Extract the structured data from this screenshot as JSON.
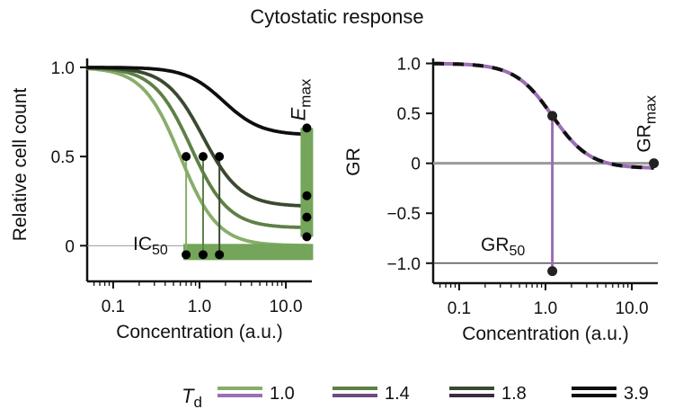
{
  "title": "Cytostatic response",
  "colors": {
    "green1": "#88ad6b",
    "green2": "#5e8046",
    "green3": "#3a4a30",
    "black": "#0e0e0e",
    "purple": "#9b6fb5",
    "band": "#74a55a",
    "zero_line": "#9a9a9a"
  },
  "chart_data": [
    {
      "type": "line",
      "xscale": "log",
      "xlabel": "Concentration (a.u.)",
      "ylabel": "Relative cell count",
      "xlim": [
        0.05,
        20
      ],
      "ylim": [
        -0.2,
        1.05
      ],
      "xticks": [
        {
          "v": 0.1,
          "label": "0.1"
        },
        {
          "v": 1,
          "label": "1.0"
        },
        {
          "v": 10,
          "label": "10.0"
        }
      ],
      "yticks": [
        {
          "v": 0,
          "label": "0"
        },
        {
          "v": 0.5,
          "label": "0.5"
        },
        {
          "v": 1,
          "label": "1.0"
        }
      ],
      "series": [
        {
          "name": "1.0",
          "ec50": 0.6,
          "einf": 0.0,
          "emax": 0.05,
          "color": "#88ad6b",
          "ic50": 0.7
        },
        {
          "name": "1.4",
          "ec50": 0.8,
          "einf": 0.1,
          "emax": 0.16,
          "color": "#5e8046",
          "ic50": 1.1
        },
        {
          "name": "1.8",
          "ec50": 1.1,
          "einf": 0.22,
          "emax": 0.28,
          "color": "#3a4a30",
          "ic50": 1.7
        },
        {
          "name": "3.9",
          "ec50": 1.9,
          "einf": 0.62,
          "emax": 0.66,
          "color": "#0e0e0e"
        }
      ],
      "labels": {
        "ic50": "IC",
        "ic50_sub": "50",
        "emax": "E",
        "emax_sub": "max"
      }
    },
    {
      "type": "line",
      "xscale": "log",
      "xlabel": "Concentration (a.u.)",
      "ylabel": "GR",
      "xlim": [
        0.05,
        20
      ],
      "ylim": [
        -1.2,
        1.05
      ],
      "xticks": [
        {
          "v": 0.1,
          "label": "0.1"
        },
        {
          "v": 1,
          "label": "1.0"
        },
        {
          "v": 10,
          "label": "10.0"
        }
      ],
      "yticks": [
        {
          "v": 1,
          "label": "1.0"
        },
        {
          "v": 0.5,
          "label": "0.5"
        },
        {
          "v": 0,
          "label": "0"
        },
        {
          "v": -0.5,
          "label": "−0.5"
        },
        {
          "v": -1,
          "label": "−1.0"
        }
      ],
      "curve": {
        "ec50": 1.2,
        "ginf": -0.05
      },
      "gr50": 1.2,
      "grmax_x": 18,
      "grmax_y": 0,
      "labels": {
        "gr50": "GR",
        "gr50_sub": "50",
        "grmax": "GR",
        "grmax_sub": "max"
      }
    }
  ],
  "legend": {
    "label": "T",
    "label_sub": "d",
    "items": [
      "1.0",
      "1.4",
      "1.8",
      "3.9"
    ]
  }
}
